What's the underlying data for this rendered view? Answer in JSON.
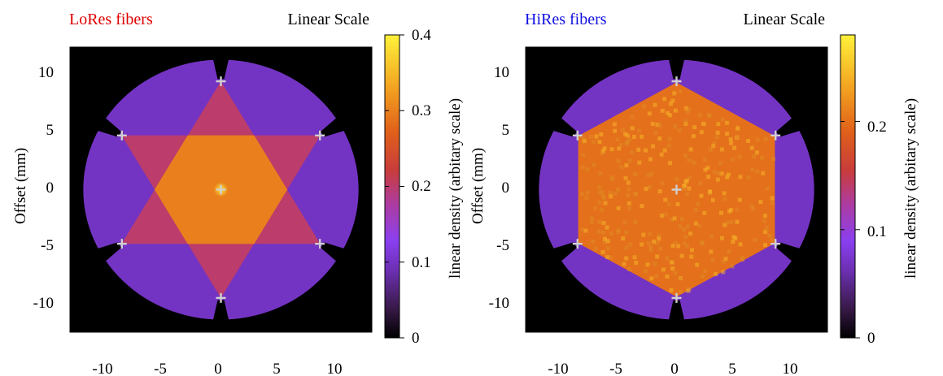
{
  "chart_data": [
    {
      "type": "heatmap",
      "title": "LoRes fibers",
      "title_color": "#e00000",
      "scale_label": "Linear Scale",
      "xlabel": "",
      "ylabel": "Offset (mm)",
      "colorbar_label": "linear density (arbitary scale)",
      "xlim": [
        -12.5,
        12.5
      ],
      "ylim": [
        -12.5,
        12.5
      ],
      "xticks": [
        "-10",
        "-5",
        "0",
        "5",
        "10"
      ],
      "yticks": [
        "10",
        "5",
        "0",
        "-5",
        "-10"
      ],
      "clim": [
        0,
        0.4
      ],
      "cticks": [
        "0.4",
        "0.3",
        "0.2",
        "0.1",
        "0"
      ],
      "pattern": "hexagram",
      "levels": {
        "outer": 0.1,
        "star_points": 0.2,
        "center_hexagon": 0.3
      },
      "markers": [
        {
          "x": 0,
          "y": 9.5
        },
        {
          "x": 8.2,
          "y": 4.75
        },
        {
          "x": 8.2,
          "y": -4.75
        },
        {
          "x": 0,
          "y": -9.5
        },
        {
          "x": -8.2,
          "y": -4.75
        },
        {
          "x": -8.2,
          "y": 4.75
        },
        {
          "x": 0,
          "y": 0
        }
      ]
    },
    {
      "type": "heatmap",
      "title": "HiRes fibers",
      "title_color": "#1010e0",
      "scale_label": "Linear Scale",
      "xlabel": "",
      "ylabel": "Offset (mm)",
      "colorbar_label": "linear density (arbitary scale)",
      "xlim": [
        -12.5,
        12.5
      ],
      "ylim": [
        -12.5,
        12.5
      ],
      "xticks": [
        "-10",
        "-5",
        "0",
        "5",
        "10"
      ],
      "yticks": [
        "10",
        "5",
        "0",
        "-5",
        "-10"
      ],
      "clim": [
        0,
        0.28
      ],
      "cticks": [
        "0.2",
        "0.1",
        "0"
      ],
      "pattern": "hexagon",
      "levels": {
        "outer": 0.07,
        "center_hexagon": 0.2
      },
      "markers": [
        {
          "x": 0,
          "y": 9.5
        },
        {
          "x": 8.2,
          "y": 4.75
        },
        {
          "x": 8.2,
          "y": -4.75
        },
        {
          "x": 0,
          "y": -9.5
        },
        {
          "x": -8.2,
          "y": -4.75
        },
        {
          "x": -8.2,
          "y": 4.75
        },
        {
          "x": 0,
          "y": 0
        }
      ]
    }
  ]
}
